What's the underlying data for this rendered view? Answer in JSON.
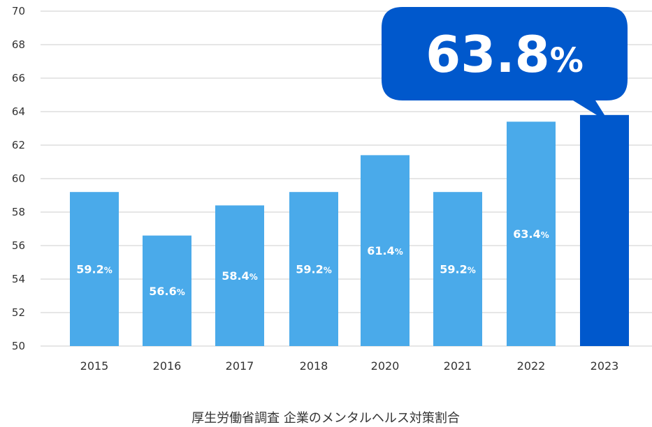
{
  "chart_data": {
    "type": "bar",
    "title": "厚生労働省調査 企業のメンタルヘルス対策割合",
    "categories": [
      "2015",
      "2016",
      "2017",
      "2018",
      "2020",
      "2021",
      "2022",
      "2023"
    ],
    "values": [
      59.2,
      56.6,
      58.4,
      59.2,
      61.4,
      59.2,
      63.4,
      63.8
    ],
    "data_labels": [
      "59.2",
      "56.6",
      "58.4",
      "59.2",
      "61.4",
      "59.2",
      "63.4",
      "63.8"
    ],
    "unit": "%",
    "ylim": [
      50,
      70
    ],
    "yticks": [
      "50",
      "52",
      "54",
      "56",
      "58",
      "60",
      "62",
      "64",
      "66",
      "68",
      "70"
    ],
    "grid": true,
    "highlight": {
      "category": "2023",
      "label": "63.8",
      "unit": "%"
    },
    "colors": {
      "bar": "#4aaaea",
      "highlight_bar": "#0058cc",
      "callout": "#0058cc",
      "grid": "#cccccc"
    }
  }
}
